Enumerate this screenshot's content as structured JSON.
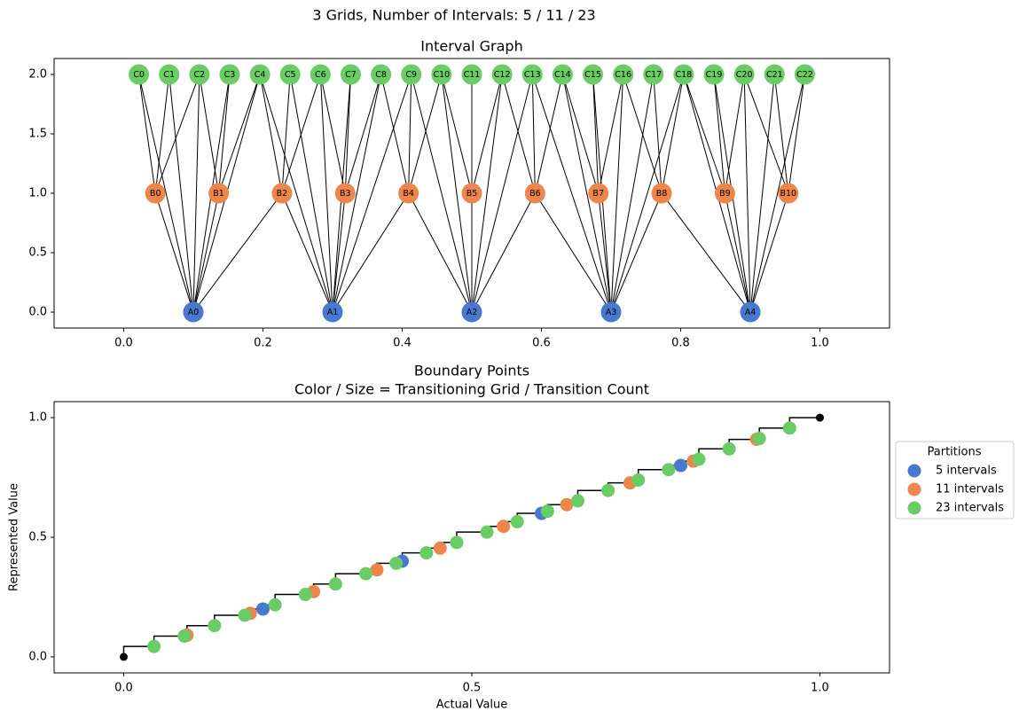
{
  "title": "3 Grids, Number of Intervals: 5 / 11 / 23",
  "chart_data": [
    {
      "type": "graph",
      "title": "Interval Graph",
      "xlim": [
        -0.1,
        1.1
      ],
      "ylim": [
        -0.134,
        2.134
      ],
      "xticks": [
        {
          "value": 0,
          "label": "0.0"
        },
        0.2,
        0.4,
        0.6,
        0.8,
        {
          "value": 1,
          "label": "1.0"
        }
      ],
      "yticks": [
        {
          "value": 0,
          "label": "0.0"
        },
        0.5,
        {
          "value": 1,
          "label": "1.0"
        },
        1.5,
        {
          "value": 2,
          "label": "2.0"
        }
      ],
      "layers": [
        {
          "labels": [
            "A0",
            "A1",
            "A2",
            "A3",
            "A4"
          ],
          "color": "#4878d0",
          "y": 0,
          "x": [
            0.1,
            0.3,
            0.5,
            0.7,
            0.9
          ]
        },
        {
          "labels": [
            "B0",
            "B1",
            "B2",
            "B3",
            "B4",
            "B5",
            "B6",
            "B7",
            "B8",
            "B9",
            "B10"
          ],
          "color": "#ee854a",
          "y": 1,
          "x": [
            0.0455,
            0.1364,
            0.2273,
            0.3182,
            0.4091,
            0.5,
            0.5909,
            0.6818,
            0.7727,
            0.8636,
            0.9545
          ]
        },
        {
          "labels": [
            "C0",
            "C1",
            "C2",
            "C3",
            "C4",
            "C5",
            "C6",
            "C7",
            "C8",
            "C9",
            "C10",
            "C11",
            "C12",
            "C13",
            "C14",
            "C15",
            "C16",
            "C17",
            "C18",
            "C19",
            "C20",
            "C21",
            "C22"
          ],
          "color": "#6acc64",
          "y": 2,
          "x": [
            0.0217,
            0.0652,
            0.1087,
            0.1522,
            0.1957,
            0.2391,
            0.2826,
            0.3261,
            0.3696,
            0.413,
            0.4565,
            0.5,
            0.5435,
            0.587,
            0.6304,
            0.6739,
            0.7174,
            0.7609,
            0.8043,
            0.8478,
            0.8913,
            0.9348,
            0.9783
          ]
        }
      ]
    },
    {
      "type": "step-scatter",
      "title": "Boundary Points",
      "subtitle": "Color / Size = Transitioning Grid / Transition Count",
      "x_label": "Actual Value",
      "y_label": "Represented Value",
      "xlim": [
        -0.1,
        1.1
      ],
      "ylim": [
        -0.067,
        1.067
      ],
      "xticks": [
        {
          "value": 0,
          "label": "0.0"
        },
        0.5,
        {
          "value": 1,
          "label": "1.0"
        }
      ],
      "yticks": [
        {
          "value": 0,
          "label": "0.0"
        },
        0.5,
        {
          "value": 1,
          "label": "1.0"
        }
      ],
      "legend": {
        "title": "Partitions",
        "loc": "right"
      },
      "step": {
        "color": "#000000",
        "x": [
          0,
          0.0435,
          0.087,
          0.0909,
          0.1304,
          0.1739,
          0.1818,
          0.2,
          0.2174,
          0.2609,
          0.2727,
          0.3043,
          0.3478,
          0.3636,
          0.3913,
          0.4,
          0.4348,
          0.4545,
          0.4783,
          0.5217,
          0.5455,
          0.5652,
          0.6,
          0.6087,
          0.6364,
          0.6522,
          0.6957,
          0.7273,
          0.7391,
          0.7826,
          0.8,
          0.8182,
          0.8261,
          0.8696,
          0.9091,
          0.913,
          0.9565,
          1
        ],
        "y": [
          0,
          0.0435,
          0.087,
          0.0909,
          0.1304,
          0.1739,
          0.1818,
          0.2,
          0.2174,
          0.2609,
          0.2727,
          0.3043,
          0.3478,
          0.3636,
          0.3913,
          0.4,
          0.4348,
          0.4545,
          0.4783,
          0.5217,
          0.5455,
          0.5652,
          0.6,
          0.6087,
          0.6364,
          0.6522,
          0.6957,
          0.7273,
          0.7391,
          0.7826,
          0.8,
          0.8182,
          0.8261,
          0.8696,
          0.9091,
          0.913,
          0.9565,
          1
        ]
      },
      "series": [
        {
          "name": "5 intervals",
          "color": "#4878d0",
          "x": [
            0.2,
            0.4,
            0.6,
            0.8
          ],
          "y": [
            0.2,
            0.4,
            0.6,
            0.8
          ]
        },
        {
          "name": "11 intervals",
          "color": "#ee854a",
          "x": [
            0.0909,
            0.1818,
            0.2727,
            0.3636,
            0.4545,
            0.5455,
            0.6364,
            0.7273,
            0.8182,
            0.9091
          ],
          "y": [
            0.0909,
            0.1818,
            0.2727,
            0.3636,
            0.4545,
            0.5455,
            0.6364,
            0.7273,
            0.8182,
            0.9091
          ]
        },
        {
          "name": "23 intervals",
          "color": "#6acc64",
          "x": [
            0.0435,
            0.087,
            0.1304,
            0.1739,
            0.2174,
            0.2609,
            0.3043,
            0.3478,
            0.3913,
            0.4348,
            0.4783,
            0.5217,
            0.5652,
            0.6087,
            0.6522,
            0.6957,
            0.7391,
            0.7826,
            0.8261,
            0.8696,
            0.913,
            0.9565
          ],
          "y": [
            0.0435,
            0.087,
            0.1304,
            0.1739,
            0.2174,
            0.2609,
            0.3043,
            0.3478,
            0.3913,
            0.4348,
            0.4783,
            0.5217,
            0.5652,
            0.6087,
            0.6522,
            0.6957,
            0.7391,
            0.7826,
            0.8261,
            0.8696,
            0.913,
            0.9565
          ]
        }
      ]
    }
  ]
}
